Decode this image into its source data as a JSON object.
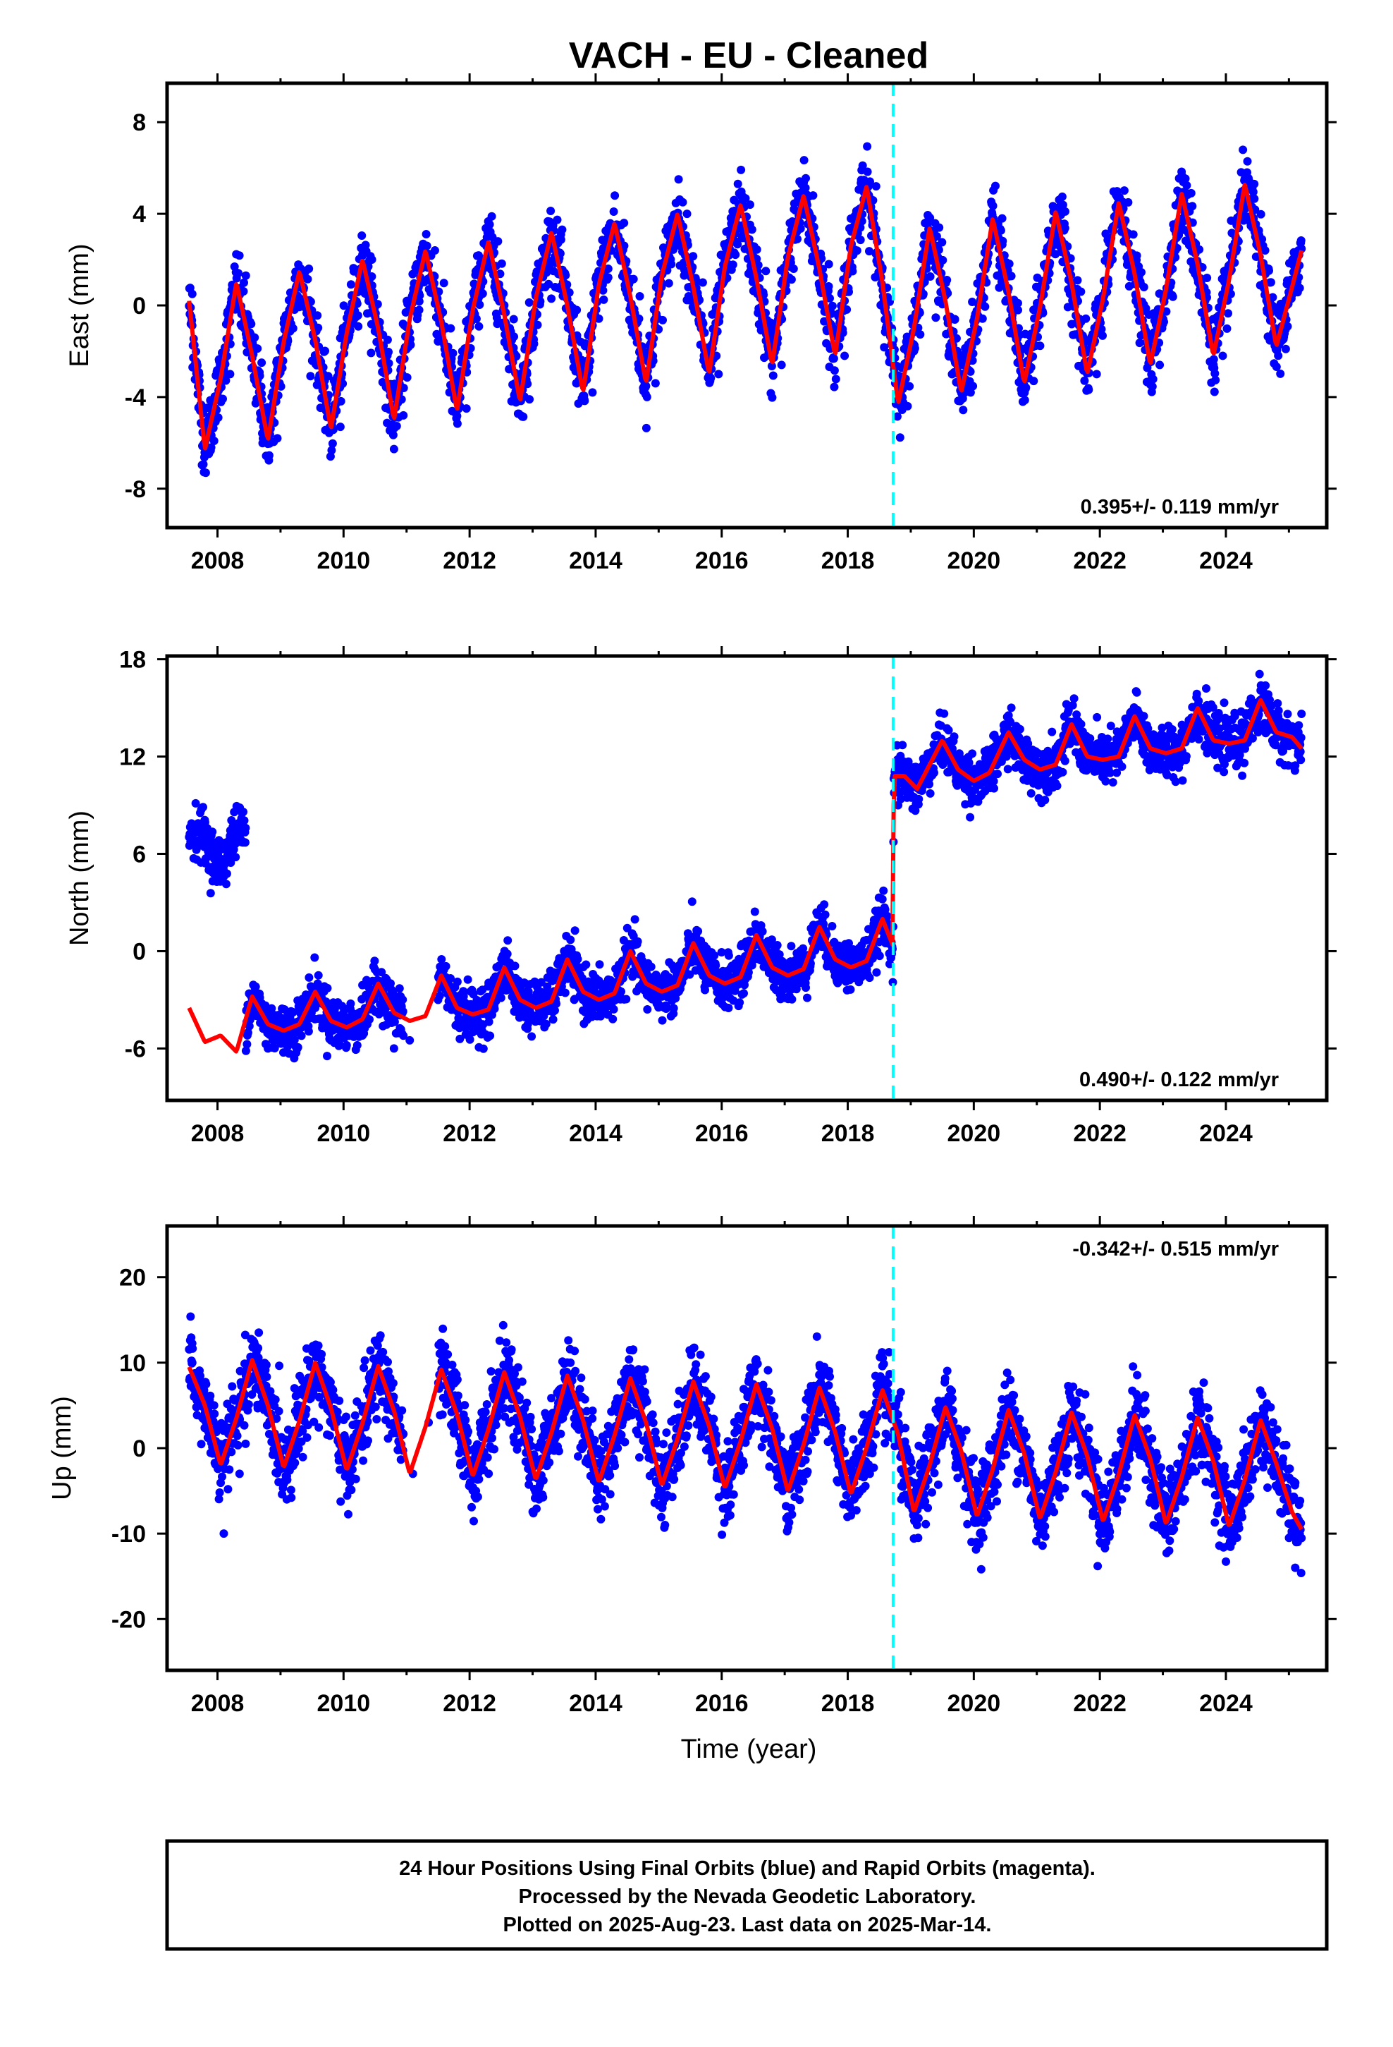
{
  "title": "VACH  - EU - Cleaned",
  "colors": {
    "final_orbits": "#0000ff",
    "model_fit": "#ff0000",
    "event_line": "#00ffff"
  },
  "x_axis": {
    "label": "Time (year)",
    "ticks": [
      "2008",
      "2010",
      "2012",
      "2014",
      "2016",
      "2018",
      "2020",
      "2022",
      "2024"
    ],
    "range": [
      2007.2,
      2025.6
    ]
  },
  "event_line_year": 2018.72,
  "footer": {
    "line1": "24 Hour Positions Using Final Orbits (blue) and Rapid Orbits (magenta).",
    "line2": "Processed by the Nevada Geodetic Laboratory.",
    "line3": "Plotted on 2025-Aug-23. Last data on 2025-Mar-14."
  },
  "chart_data": [
    {
      "type": "scatter",
      "component": "east",
      "ylabel": "East (mm)",
      "yticks": [
        "8",
        "4",
        "0",
        "-4",
        "-8"
      ],
      "ylim": [
        -9.7,
        9.7
      ],
      "rate_text": "0.395+/- 0.119 mm/yr",
      "rate_position": "bottom-right",
      "data_start": 2007.55,
      "data_end": 2025.2,
      "series": [
        {
          "style": "scatter",
          "note": "daily positions (blue dots)",
          "x": [
            2007.6,
            2007.9,
            2008.2,
            2008.45,
            2008.7,
            2008.95,
            2009.2,
            2009.45,
            2009.7,
            2009.95,
            2010.2,
            2010.45,
            2010.7,
            2010.95,
            2011.2,
            2011.45,
            2011.7,
            2011.95,
            2012.2,
            2012.45,
            2012.7,
            2012.95,
            2013.2,
            2013.45,
            2013.7,
            2013.95,
            2014.2,
            2014.45,
            2014.7,
            2014.95,
            2015.2,
            2015.45,
            2015.7,
            2015.95,
            2016.2,
            2016.45,
            2016.7,
            2016.95,
            2017.2,
            2017.45,
            2017.7,
            2017.95,
            2018.2,
            2018.45,
            2018.7,
            2018.95,
            2019.2,
            2019.45,
            2019.7,
            2019.95,
            2020.2,
            2020.45,
            2020.7,
            2020.95,
            2021.2,
            2021.45,
            2021.7,
            2021.95,
            2022.2,
            2022.45,
            2022.7,
            2022.95,
            2023.2,
            2023.45,
            2023.7,
            2023.95,
            2024.2,
            2024.45,
            2024.7,
            2024.95,
            2025.15
          ],
          "y": [
            0.5,
            -6.2,
            -3.0,
            1.3,
            -2.5,
            -5.8,
            -1.0,
            1.6,
            -2.0,
            -5.3,
            -0.5,
            2.0,
            -1.5,
            -4.8,
            -0.2,
            2.4,
            -1.0,
            -4.5,
            0.5,
            2.8,
            -0.6,
            -4.1,
            0.8,
            3.1,
            -0.2,
            -3.8,
            1.6,
            3.6,
            0.4,
            -3.4,
            1.8,
            4.0,
            1.0,
            -3.0,
            2.3,
            4.4,
            1.5,
            -2.6,
            2.9,
            4.8,
            1.8,
            -2.2,
            3.4,
            5.2,
            -1.0,
            -4.4,
            0.5,
            3.4,
            -0.6,
            -3.8,
            1.0,
            3.8,
            0.1,
            -3.3,
            1.4,
            4.1,
            0.6,
            -3.0,
            2.0,
            4.5,
            0.8,
            -2.6,
            2.4,
            4.9,
            1.2,
            -2.2,
            2.8,
            5.3,
            1.0,
            -1.9,
            2.4
          ]
        },
        {
          "style": "line",
          "note": "model fit (red)",
          "x": [
            2007.55,
            2007.8,
            2008.05,
            2008.3,
            2008.55,
            2008.8,
            2009.05,
            2009.3,
            2009.55,
            2009.8,
            2010.05,
            2010.3,
            2010.55,
            2010.8,
            2011.05,
            2011.3,
            2011.55,
            2011.8,
            2012.05,
            2012.3,
            2012.55,
            2012.8,
            2013.05,
            2013.3,
            2013.55,
            2013.8,
            2014.05,
            2014.3,
            2014.55,
            2014.8,
            2015.05,
            2015.3,
            2015.55,
            2015.8,
            2016.05,
            2016.3,
            2016.55,
            2016.8,
            2017.05,
            2017.3,
            2017.55,
            2017.8,
            2018.05,
            2018.3,
            2018.55,
            2018.72,
            2018.8,
            2019.05,
            2019.3,
            2019.55,
            2019.8,
            2020.05,
            2020.3,
            2020.55,
            2020.8,
            2021.05,
            2021.3,
            2021.55,
            2021.8,
            2022.05,
            2022.3,
            2022.55,
            2022.8,
            2023.05,
            2023.3,
            2023.55,
            2023.8,
            2024.05,
            2024.3,
            2024.55,
            2024.8,
            2025.05,
            2025.2
          ],
          "y": [
            0.2,
            -6.3,
            -3.2,
            1.0,
            -2.2,
            -5.9,
            -1.6,
            1.5,
            -1.5,
            -5.4,
            -1.2,
            2.0,
            -1.0,
            -5.0,
            -0.6,
            2.4,
            -0.7,
            -4.6,
            -0.2,
            2.8,
            -0.4,
            -4.2,
            0.3,
            3.2,
            0.0,
            -3.8,
            0.9,
            3.6,
            0.4,
            -3.4,
            1.3,
            4.0,
            0.8,
            -3.0,
            1.7,
            4.4,
            1.2,
            -2.6,
            2.1,
            4.8,
            1.6,
            -2.2,
            2.6,
            5.2,
            1.0,
            -2.6,
            -4.3,
            -1.0,
            3.4,
            0.2,
            -3.8,
            -0.6,
            3.8,
            0.6,
            -3.4,
            -0.1,
            4.1,
            1.0,
            -3.0,
            0.3,
            4.5,
            1.4,
            -2.6,
            0.7,
            4.9,
            1.8,
            -2.2,
            1.1,
            5.3,
            2.2,
            -1.8,
            0.8,
            2.4
          ]
        }
      ]
    },
    {
      "type": "scatter",
      "component": "north",
      "ylabel": "North (mm)",
      "yticks": [
        "18",
        "12",
        "6",
        "0",
        "-6"
      ],
      "ylim": [
        -9.2,
        18.2
      ],
      "rate_text": "0.490+/- 0.122 mm/yr",
      "rate_position": "bottom-right",
      "data_start": 2007.55,
      "data_end": 2025.2,
      "series": [
        {
          "style": "scatter",
          "note": "daily positions (blue dots)",
          "x": [
            2007.6,
            2007.8,
            2008.0,
            2008.2,
            2008.4,
            2008.55,
            2008.8,
            2009.05,
            2009.3,
            2009.55,
            2009.8,
            2010.05,
            2010.3,
            2010.55,
            2010.8,
            2011.05,
            2011.5,
            2011.8,
            2012.05,
            2012.3,
            2012.55,
            2012.8,
            2013.05,
            2013.3,
            2013.55,
            2013.8,
            2014.05,
            2014.3,
            2014.55,
            2014.8,
            2015.05,
            2015.3,
            2015.55,
            2015.8,
            2016.05,
            2016.3,
            2016.55,
            2016.8,
            2017.05,
            2017.3,
            2017.55,
            2017.8,
            2018.05,
            2018.3,
            2018.55,
            2018.8,
            2019.05,
            2019.3,
            2019.55,
            2019.8,
            2020.05,
            2020.3,
            2020.55,
            2020.8,
            2021.05,
            2021.3,
            2021.55,
            2021.8,
            2022.05,
            2022.3,
            2022.55,
            2022.8,
            2023.05,
            2023.3,
            2023.55,
            2023.8,
            2024.05,
            2024.3,
            2024.55,
            2024.8,
            2025.05,
            2025.15
          ],
          "y": [
            7.5,
            6.5,
            5.8,
            6.2,
            7.8,
            -3.0,
            -6.0,
            -5.5,
            -4.5,
            -3.5,
            -5.5,
            -5.8,
            -5.2,
            -3.8,
            -6.0,
            -5.5,
            -3.0,
            -4.5,
            -5.0,
            -4.0,
            -2.0,
            -3.5,
            -4.2,
            -3.6,
            -1.5,
            -3.0,
            -3.5,
            -2.5,
            -0.5,
            -2.0,
            -2.8,
            -1.8,
            0.0,
            -1.5,
            -2.0,
            -1.2,
            0.5,
            -1.2,
            -1.5,
            -0.8,
            1.0,
            -0.8,
            -1.2,
            -0.5,
            1.5,
            9.0,
            9.5,
            11.0,
            12.5,
            11.5,
            10.5,
            12.0,
            13.0,
            11.5,
            11.0,
            12.5,
            13.5,
            12.0,
            12.2,
            13.0,
            14.0,
            13.0,
            12.8,
            13.5,
            14.5,
            13.5,
            13.2,
            14.0,
            15.0,
            14.0,
            13.8,
            13.5
          ]
        },
        {
          "style": "line",
          "note": "model fit (red)",
          "x": [
            2007.55,
            2007.8,
            2008.05,
            2008.3,
            2008.55,
            2008.8,
            2009.05,
            2009.3,
            2009.55,
            2009.8,
            2010.05,
            2010.3,
            2010.55,
            2010.8,
            2011.05,
            2011.3,
            2011.55,
            2011.8,
            2012.05,
            2012.3,
            2012.55,
            2012.8,
            2013.05,
            2013.3,
            2013.55,
            2013.8,
            2014.05,
            2014.3,
            2014.55,
            2014.8,
            2015.05,
            2015.3,
            2015.55,
            2015.8,
            2016.05,
            2016.3,
            2016.55,
            2016.8,
            2017.05,
            2017.3,
            2017.55,
            2017.8,
            2018.05,
            2018.3,
            2018.55,
            2018.72,
            2018.73,
            2018.9,
            2019.1,
            2019.3,
            2019.5,
            2019.75,
            2020.0,
            2020.25,
            2020.55,
            2020.8,
            2021.05,
            2021.3,
            2021.55,
            2021.8,
            2022.05,
            2022.3,
            2022.55,
            2022.8,
            2023.05,
            2023.3,
            2023.55,
            2023.8,
            2024.05,
            2024.3,
            2024.55,
            2024.8,
            2025.05,
            2025.2
          ],
          "y": [
            -3.5,
            -5.6,
            -5.2,
            -6.2,
            -2.8,
            -4.5,
            -4.9,
            -4.5,
            -2.5,
            -4.3,
            -4.7,
            -4.2,
            -2.0,
            -3.8,
            -4.3,
            -4.0,
            -1.5,
            -3.5,
            -3.9,
            -3.6,
            -1.0,
            -3.0,
            -3.5,
            -3.1,
            -0.5,
            -2.5,
            -3.0,
            -2.6,
            0.0,
            -2.0,
            -2.5,
            -2.1,
            0.5,
            -1.5,
            -2.0,
            -1.6,
            1.0,
            -1.0,
            -1.5,
            -1.1,
            1.5,
            -0.5,
            -1.0,
            -0.6,
            2.0,
            0.3,
            10.8,
            10.8,
            10.0,
            11.5,
            13.0,
            11.2,
            10.5,
            11.0,
            13.5,
            11.8,
            11.2,
            11.5,
            14.0,
            12.0,
            11.8,
            12.0,
            14.5,
            12.5,
            12.2,
            12.5,
            15.0,
            13.0,
            12.8,
            13.0,
            15.5,
            13.5,
            13.2,
            12.5
          ]
        }
      ]
    },
    {
      "type": "scatter",
      "component": "up",
      "ylabel": "Up (mm)",
      "yticks": [
        "20",
        "10",
        "0",
        "-10",
        "-20"
      ],
      "ylim": [
        -26,
        26
      ],
      "rate_text": "-0.342+/- 0.515 mm/yr",
      "rate_position": "top-right",
      "data_start": 2007.55,
      "data_end": 2025.2,
      "series": [
        {
          "style": "scatter",
          "note": "daily positions (blue dots)",
          "x": [
            2007.6,
            2007.85,
            2008.1,
            2008.35,
            2008.6,
            2008.85,
            2009.1,
            2009.35,
            2009.6,
            2009.85,
            2010.1,
            2010.35,
            2010.6,
            2010.85,
            2011.1,
            2011.35,
            2011.6,
            2011.85,
            2012.1,
            2012.35,
            2012.6,
            2012.85,
            2013.1,
            2013.35,
            2013.6,
            2013.85,
            2014.1,
            2014.35,
            2014.6,
            2014.85,
            2015.1,
            2015.35,
            2015.6,
            2015.85,
            2016.1,
            2016.35,
            2016.6,
            2016.85,
            2017.1,
            2017.35,
            2017.6,
            2017.85,
            2018.1,
            2018.35,
            2018.6,
            2018.85,
            2019.1,
            2019.35,
            2019.6,
            2019.85,
            2020.1,
            2020.35,
            2020.6,
            2020.85,
            2021.1,
            2021.35,
            2021.6,
            2021.85,
            2022.1,
            2022.35,
            2022.6,
            2022.85,
            2023.1,
            2023.35,
            2023.6,
            2023.85,
            2024.1,
            2024.35,
            2024.6,
            2024.85,
            2025.1
          ],
          "y": [
            10,
            2,
            -10,
            -3,
            12,
            4,
            -6,
            2,
            12,
            6,
            -4,
            3,
            11,
            4,
            -3,
            3,
            10,
            3,
            -5,
            2,
            11,
            4,
            -6,
            1,
            10,
            2,
            -6,
            0,
            9,
            0,
            -9,
            -2,
            8,
            -1,
            -8,
            -2,
            7,
            0,
            -7,
            -3,
            7,
            -1,
            -6,
            -3,
            8,
            -6,
            -9,
            -2,
            6,
            -3,
            -10,
            -4,
            6,
            -2,
            -10,
            -5,
            5,
            -3,
            -11,
            -6,
            6,
            -2,
            -12,
            -6,
            5,
            -1,
            -11,
            -6,
            4,
            -4,
            -14
          ]
        },
        {
          "style": "line",
          "note": "model fit (red)",
          "x": [
            2007.55,
            2007.8,
            2008.05,
            2008.3,
            2008.55,
            2008.8,
            2009.05,
            2009.3,
            2009.55,
            2009.8,
            2010.05,
            2010.3,
            2010.55,
            2010.8,
            2011.05,
            2011.3,
            2011.55,
            2011.8,
            2012.05,
            2012.3,
            2012.55,
            2012.8,
            2013.05,
            2013.3,
            2013.55,
            2013.8,
            2014.05,
            2014.3,
            2014.55,
            2014.8,
            2015.05,
            2015.3,
            2015.55,
            2015.8,
            2016.05,
            2016.3,
            2016.55,
            2016.8,
            2017.05,
            2017.3,
            2017.55,
            2017.8,
            2018.05,
            2018.3,
            2018.55,
            2018.8,
            2019.05,
            2019.3,
            2019.55,
            2019.8,
            2020.05,
            2020.3,
            2020.55,
            2020.8,
            2021.05,
            2021.3,
            2021.55,
            2021.8,
            2022.05,
            2022.3,
            2022.55,
            2022.8,
            2023.05,
            2023.3,
            2023.55,
            2023.8,
            2024.05,
            2024.3,
            2024.55,
            2024.8,
            2025.05,
            2025.2
          ],
          "y": [
            9.5,
            5.0,
            -2.0,
            3.5,
            10.3,
            5.0,
            -2.3,
            3.2,
            10.0,
            4.7,
            -2.6,
            2.9,
            9.6,
            4.4,
            -3.0,
            2.5,
            9.2,
            4.0,
            -3.3,
            2.2,
            8.9,
            3.7,
            -3.7,
            1.8,
            8.5,
            3.3,
            -4.0,
            1.5,
            8.2,
            3.0,
            -4.4,
            1.1,
            7.8,
            2.6,
            -4.7,
            0.8,
            7.5,
            2.3,
            -5.1,
            0.4,
            7.1,
            1.9,
            -5.4,
            0.1,
            6.8,
            1.6,
            -7.5,
            -2.0,
            4.8,
            -0.3,
            -8.0,
            -2.5,
            4.5,
            -0.6,
            -8.3,
            -2.8,
            4.2,
            -0.9,
            -8.6,
            -3.1,
            3.9,
            -1.2,
            -8.9,
            -3.4,
            3.6,
            -1.5,
            -9.2,
            -3.7,
            3.3,
            -1.8,
            -7.5,
            -9.5
          ]
        }
      ]
    }
  ]
}
